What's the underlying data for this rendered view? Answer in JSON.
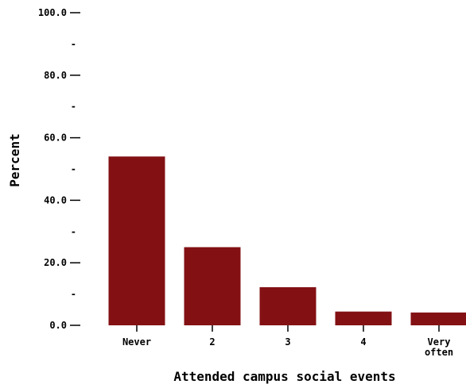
{
  "chart_data": {
    "type": "bar",
    "title": "",
    "xlabel": "Attended campus social events",
    "ylabel": "Percent",
    "categories": [
      [
        "Never"
      ],
      [
        "2"
      ],
      [
        "3"
      ],
      [
        "4"
      ],
      [
        "Very",
        "often"
      ]
    ],
    "values": [
      54.0,
      25.0,
      12.2,
      4.4,
      4.1
    ],
    "ylim": [
      0,
      100
    ],
    "yticks": [
      {
        "value": 0,
        "label": "0.0"
      },
      {
        "value": 10,
        "label": "-"
      },
      {
        "value": 20,
        "label": "20.0"
      },
      {
        "value": 30,
        "label": "-"
      },
      {
        "value": 40,
        "label": "40.0"
      },
      {
        "value": 50,
        "label": "-"
      },
      {
        "value": 60,
        "label": "60.0"
      },
      {
        "value": 70,
        "label": "-"
      },
      {
        "value": 80,
        "label": "80.0"
      },
      {
        "value": 90,
        "label": "-"
      },
      {
        "value": 100,
        "label": "100.0"
      }
    ],
    "bar_color": "#831114",
    "grid": false,
    "legend": "none"
  }
}
